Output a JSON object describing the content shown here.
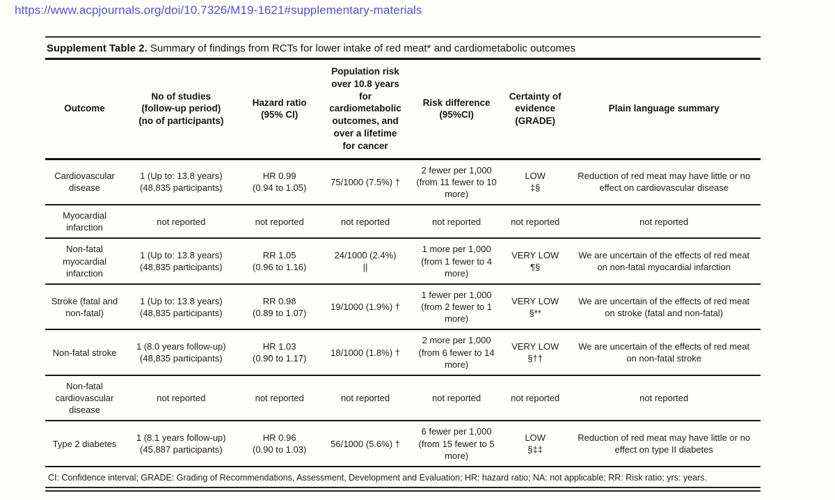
{
  "page": {
    "url": "https://www.acpjournals.org/doi/10.7326/M19-1621#supplementary-materials"
  },
  "colors": {
    "url_text": "#5252cd",
    "body_text": "#1b1b1b",
    "rule": "#111111",
    "background": "#fffefb"
  },
  "table": {
    "title_label": "Supplement Table 2.",
    "title_text": "Summary of findings from RCTs for lower intake of red meat* and cardiometabolic outcomes",
    "columns": [
      "Outcome",
      "No of studies\n(follow-up period)\n(no of participants)",
      "Hazard ratio\n(95% CI)",
      "Population risk\nover 10.8 years\nfor\ncardiometabolic\noutcomes, and\nover a lifetime\nfor cancer",
      "Risk difference\n(95%CI)",
      "Certainty of\nevidence\n(GRADE)",
      "Plain language summary"
    ],
    "rows": [
      {
        "cells": [
          "Cardiovascular\ndisease",
          "1 (Up to: 13.8 years)\n(48,835 participants)",
          "HR 0.99\n(0.94 to 1.05)",
          "75/1000 (7.5%) †",
          "2 fewer per 1,000\n(from 11 fewer to 10\nmore)",
          "LOW\n‡§",
          "Reduction of red meat may have little or no\neffect on cardiovascular disease"
        ]
      },
      {
        "cells": [
          "Myocardial\ninfarction",
          "not reported",
          "not reported",
          "not reported",
          "not reported",
          "not reported",
          "not reported"
        ]
      },
      {
        "cells": [
          "Non-fatal\nmyocardial\ninfarction",
          "1 (Up to: 13.8 years)\n(48,835 participants)",
          "RR 1.05\n(0.96 to 1.16)",
          "24/1000 (2.4%)\n||",
          "1 more per 1,000\n(from 1 fewer to 4\nmore)",
          "VERY LOW\n¶§",
          "We are uncertain of the effects of red meat\non non-fatal myocardial infarction"
        ]
      },
      {
        "cells": [
          "Stroke (fatal and\nnon-fatal)",
          "1 (Up to: 13.8 years)\n(48,835 participants)",
          "RR 0.98\n(0.89 to 1.07)",
          "19/1000 (1.9%) †",
          "1 fewer per 1,000\n(from 2 fewer to 1\nmore)",
          "VERY LOW\n§**",
          "We are uncertain of the effects of red meat\non stroke (fatal and non-fatal)"
        ]
      },
      {
        "cells": [
          "Non-fatal stroke",
          "1 (8.0 years follow-up)\n(48,835 participants)",
          "HR 1.03\n(0.90 to 1.17)",
          "18/1000 (1.8%) †",
          "2 more per 1,000\n(from 6 fewer to 14\nmore)",
          "VERY LOW\n§††",
          "We are uncertain of the effects of red meat\non non-fatal stroke"
        ]
      },
      {
        "cells": [
          "Non-fatal\ncardiovascular\ndisease",
          "not reported",
          "not reported",
          "not reported",
          "not reported",
          "not reported",
          "not reported"
        ]
      },
      {
        "cells": [
          "Type 2 diabetes",
          "1 (8.1 years follow-up)\n(45,887 participants)",
          "HR 0.96\n(0.90 to 1.03)",
          "56/1000 (5.6%) †",
          "6 fewer per 1,000\n(from 15 fewer to 5\nmore)",
          "LOW\n§‡‡",
          "Reduction of red meat may have little or no\neffect on type II diabetes"
        ]
      }
    ],
    "footnote": "CI: Confidence interval; GRADE: Grading of Recommendations, Assessment, Development and Evaluation; HR: hazard ratio; NA: not applicable; RR: Risk ratio; yrs: years."
  }
}
